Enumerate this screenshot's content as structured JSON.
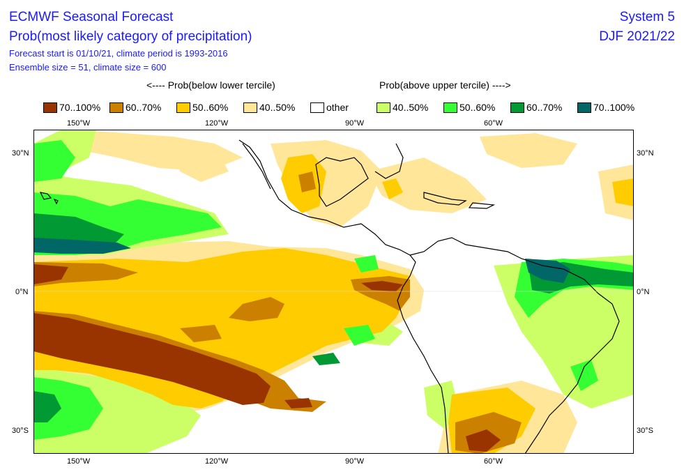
{
  "header": {
    "title1": "ECMWF Seasonal Forecast",
    "title2": "Prob(most likely category of precipitation)",
    "line3": "Forecast start is 01/10/21, climate period is 1993-2016",
    "line4": "Ensemble size = 51, climate size = 600",
    "system": "System 5",
    "season": "DJF 2021/22"
  },
  "legend": {
    "below_heading": "<---- Prob(below lower tercile)",
    "above_heading": "Prob(above upper tercile) ---->",
    "items": [
      {
        "label": "70..100%",
        "color": "#993300"
      },
      {
        "label": "60..70%",
        "color": "#cc8000"
      },
      {
        "label": "50..60%",
        "color": "#ffcc00"
      },
      {
        "label": "40..50%",
        "color": "#ffe699"
      },
      {
        "label": "other",
        "color": "#ffffff"
      },
      {
        "label": "40..50%",
        "color": "#ccff66"
      },
      {
        "label": "50..60%",
        "color": "#33ff33"
      },
      {
        "label": "60..70%",
        "color": "#009933"
      },
      {
        "label": "70..100%",
        "color": "#006666"
      }
    ]
  },
  "axes": {
    "lon_labels": [
      "150°W",
      "120°W",
      "90°W",
      "60°W"
    ],
    "lat_left": [
      "30°N",
      "0°N",
      "30°S"
    ],
    "lat_right": [
      "30°N",
      "0°N",
      "30°S"
    ]
  }
}
